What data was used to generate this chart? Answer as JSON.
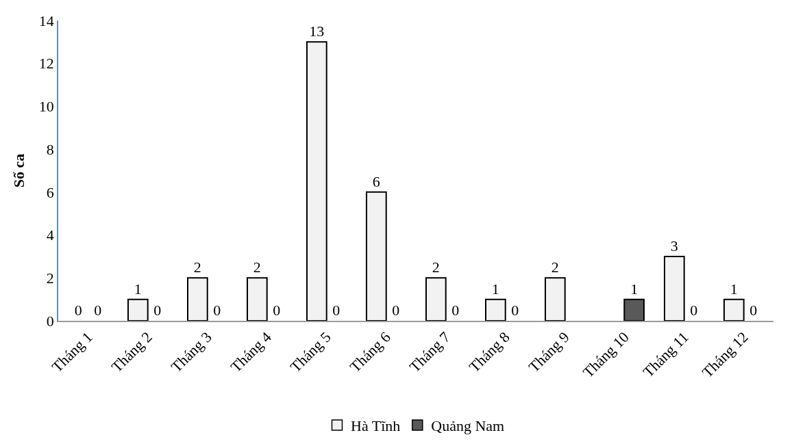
{
  "chart_data": {
    "type": "bar",
    "ylabel": "Số ca",
    "categories": [
      "Tháng 1",
      "Tháng 2",
      "Tháng 3",
      "Tháng 4",
      "Tháng 5",
      "Tháng 6",
      "Tháng 7",
      "Tháng 8",
      "Tháng 9",
      "Tháng 10",
      "Tháng 11",
      "Tháng 12"
    ],
    "series": [
      {
        "name": "Hà Tĩnh",
        "color": "#f2f2f2",
        "values": [
          0,
          1,
          2,
          2,
          13,
          6,
          2,
          1,
          2,
          0,
          3,
          1
        ],
        "value_labels": [
          "0",
          "1",
          "2",
          "2",
          "13",
          "6",
          "2",
          "1",
          "2",
          null,
          "3",
          "1"
        ]
      },
      {
        "name": "Quảng Nam",
        "color": "#595959",
        "values": [
          0,
          0,
          0,
          0,
          0,
          0,
          0,
          0,
          0,
          1,
          0,
          0
        ],
        "value_labels": [
          "0",
          "0",
          "0",
          "0",
          "0",
          "0",
          "0",
          "0",
          null,
          "1",
          "0",
          "0"
        ]
      }
    ],
    "ylim": [
      0,
      14
    ],
    "yticks": [
      0,
      2,
      4,
      6,
      8,
      10,
      12,
      14
    ],
    "legend": "bottom"
  }
}
